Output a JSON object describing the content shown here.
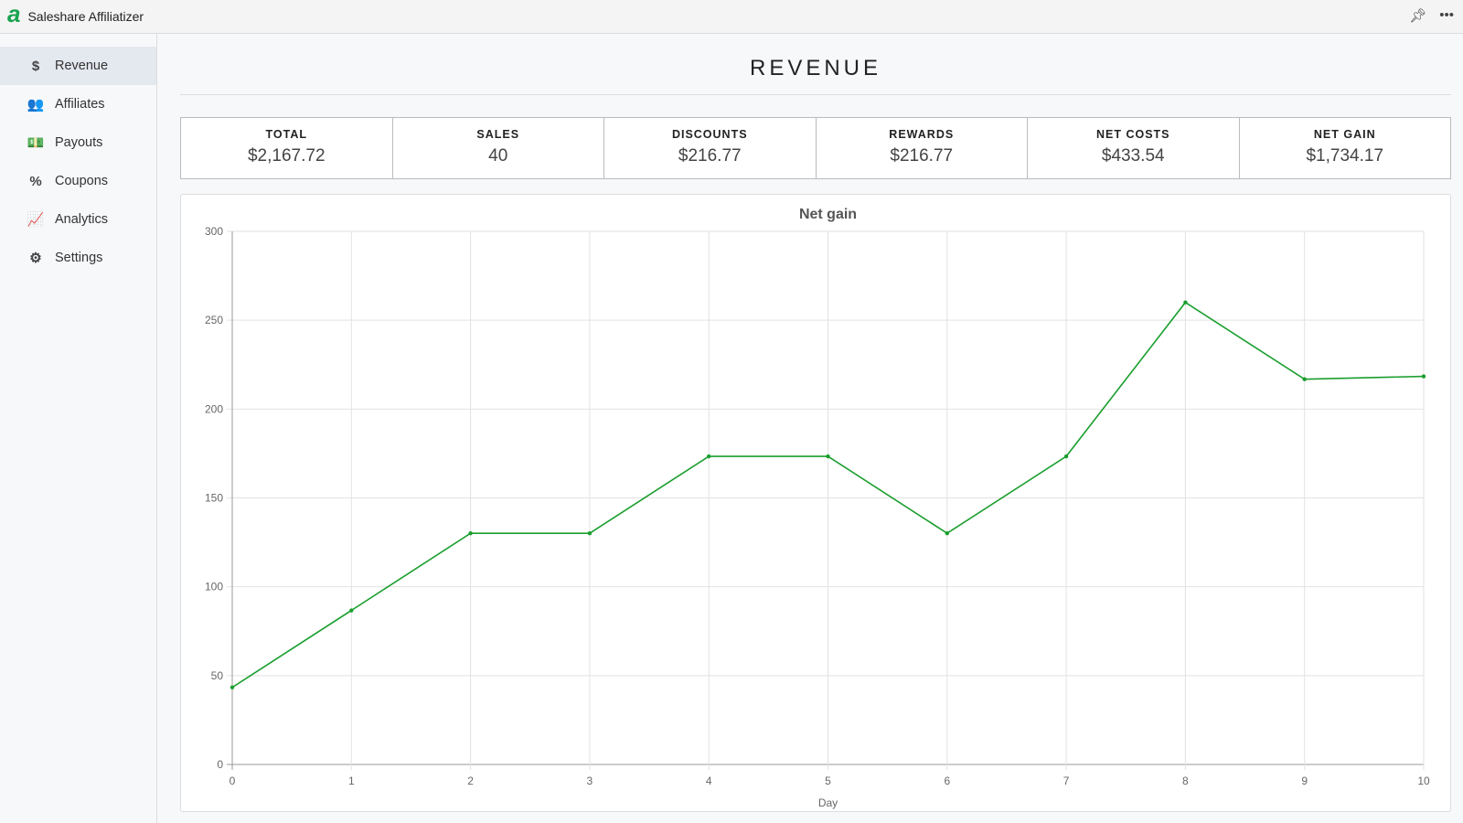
{
  "app": {
    "title": "Saleshare Affiliatizer",
    "logo": "a"
  },
  "sidebar": {
    "items": [
      {
        "label": "Revenue",
        "icon": "$",
        "active": true
      },
      {
        "label": "Affiliates",
        "icon": "👥"
      },
      {
        "label": "Payouts",
        "icon": "💵"
      },
      {
        "label": "Coupons",
        "icon": "%"
      },
      {
        "label": "Analytics",
        "icon": "📈"
      },
      {
        "label": "Settings",
        "icon": "⚙"
      }
    ]
  },
  "page": {
    "title": "REVENUE"
  },
  "stats": [
    {
      "label": "TOTAL",
      "value": "$2,167.72"
    },
    {
      "label": "SALES",
      "value": "40"
    },
    {
      "label": "DISCOUNTS",
      "value": "$216.77"
    },
    {
      "label": "REWARDS",
      "value": "$216.77"
    },
    {
      "label": "NET COSTS",
      "value": "$433.54"
    },
    {
      "label": "NET GAIN",
      "value": "$1,734.17"
    }
  ],
  "chart_data": {
    "type": "line",
    "title": "Net gain",
    "xlabel": "Day",
    "ylabel": "",
    "x": [
      0,
      1,
      2,
      3,
      4,
      5,
      6,
      7,
      8,
      9,
      10
    ],
    "series": [
      {
        "name": "Net gain",
        "color": "#1a9e2e",
        "values": [
          43.4,
          86.7,
          130.1,
          130.1,
          173.4,
          173.4,
          130.1,
          173.4,
          260,
          216.8,
          218.4
        ]
      }
    ],
    "ylim": [
      0,
      300
    ],
    "yticks": [
      0,
      50,
      100,
      150,
      200,
      250,
      300
    ],
    "grid": true
  }
}
